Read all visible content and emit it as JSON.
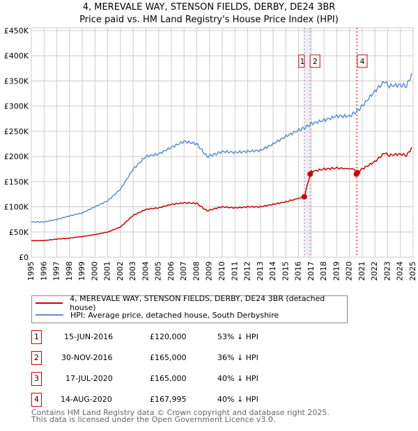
{
  "chart_data": {
    "type": "line",
    "title": "4, MEREVALE WAY, STENSON FIELDS, DERBY, DE24 3BR",
    "subtitle": "Price paid vs. HM Land Registry's House Price Index (HPI)",
    "xlim": [
      1995,
      2025
    ],
    "ylim": [
      0,
      450000
    ],
    "x_ticks": [
      "1995",
      "1996",
      "1997",
      "1998",
      "1999",
      "2000",
      "2001",
      "2002",
      "2003",
      "2004",
      "2005",
      "2006",
      "2007",
      "2008",
      "2009",
      "2010",
      "2011",
      "2012",
      "2013",
      "2014",
      "2015",
      "2016",
      "2017",
      "2018",
      "2019",
      "2020",
      "2021",
      "2022",
      "2023",
      "2024",
      "2025"
    ],
    "y_ticks": [
      {
        "v": 0,
        "label": "£0"
      },
      {
        "v": 50000,
        "label": "£50K"
      },
      {
        "v": 100000,
        "label": "£100K"
      },
      {
        "v": 150000,
        "label": "£150K"
      },
      {
        "v": 200000,
        "label": "£200K"
      },
      {
        "v": 250000,
        "label": "£250K"
      },
      {
        "v": 300000,
        "label": "£300K"
      },
      {
        "v": 350000,
        "label": "£350K"
      },
      {
        "v": 400000,
        "label": "£400K"
      },
      {
        "v": 450000,
        "label": "£450K"
      }
    ],
    "grid": true,
    "series": [
      {
        "name": "4, MEREVALE WAY, STENSON FIELDS, DERBY, DE24 3BR (detached house)",
        "color": "#cc0000",
        "x": [
          1995,
          1996,
          1997,
          1998,
          1999,
          2000,
          2001,
          2002,
          2003,
          2004,
          2005,
          2006,
          2007,
          2008,
          2008.8,
          2009.5,
          2010,
          2011,
          2012,
          2013,
          2014,
          2015,
          2016.45,
          2016.91,
          2017,
          2018,
          2019,
          2020.4,
          2020.6,
          2021,
          2022,
          2022.8,
          2023,
          2024,
          2024.5,
          2024.9
        ],
        "y": [
          33000,
          33000,
          36000,
          38000,
          41000,
          45000,
          50000,
          60000,
          83000,
          95000,
          98000,
          105000,
          108000,
          107000,
          92000,
          97000,
          100000,
          98000,
          100000,
          100000,
          105000,
          110000,
          120000,
          165000,
          170000,
          175000,
          177000,
          175000,
          168000,
          175000,
          190000,
          208000,
          202000,
          205000,
          202000,
          218000
        ]
      },
      {
        "name": "HPI: Average price, detached house, South Derbyshire",
        "color": "#5b8fd4",
        "x": [
          1995,
          1996,
          1997,
          1998,
          1999,
          2000,
          2001,
          2002,
          2003,
          2004,
          2005,
          2006,
          2007,
          2008,
          2008.8,
          2009.5,
          2010,
          2011,
          2012,
          2013,
          2014,
          2015,
          2016,
          2016.5,
          2017,
          2018,
          2019,
          2020,
          2020.6,
          2021,
          2022,
          2022.8,
          2023,
          2024,
          2024.5,
          2024.9
        ],
        "y": [
          70000,
          70000,
          75000,
          82000,
          88000,
          100000,
          112000,
          135000,
          175000,
          200000,
          205000,
          218000,
          230000,
          225000,
          200000,
          205000,
          210000,
          208000,
          210000,
          212000,
          225000,
          240000,
          252000,
          257000,
          265000,
          272000,
          280000,
          280000,
          290000,
          300000,
          330000,
          350000,
          340000,
          342000,
          340000,
          365000
        ]
      }
    ],
    "sales": [
      {
        "label": "1",
        "x": 2016.45,
        "y": 120000
      },
      {
        "label": "2",
        "x": 2016.91,
        "y": 165000
      },
      {
        "label": "3",
        "x": 2020.54,
        "y": 165000
      },
      {
        "label": "4",
        "x": 2020.62,
        "y": 167995
      }
    ],
    "marker_labels_shown": [
      "1",
      "2",
      "4"
    ]
  },
  "legend": {
    "red": "4, MEREVALE WAY, STENSON FIELDS, DERBY, DE24 3BR (detached house)",
    "blue": "HPI: Average price, detached house, South Derbyshire"
  },
  "table": [
    {
      "num": "1",
      "date": "15-JUN-2016",
      "price": "£120,000",
      "hpi": "53% ↓ HPI"
    },
    {
      "num": "2",
      "date": "30-NOV-2016",
      "price": "£165,000",
      "hpi": "36% ↓ HPI"
    },
    {
      "num": "3",
      "date": "17-JUL-2020",
      "price": "£165,000",
      "hpi": "40% ↓ HPI"
    },
    {
      "num": "4",
      "date": "14-AUG-2020",
      "price": "£167,995",
      "hpi": "40% ↓ HPI"
    }
  ],
  "footer": {
    "line1": "Contains HM Land Registry data © Crown copyright and database right 2025.",
    "line2": "This data is licensed under the Open Government Licence v3.0."
  }
}
